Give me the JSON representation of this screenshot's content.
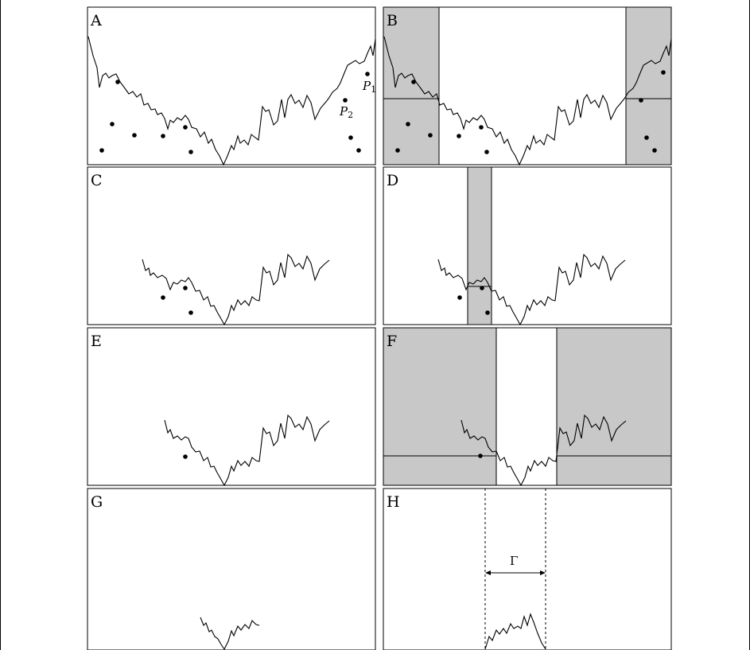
{
  "panels": [
    {
      "id": "A",
      "label": "A"
    },
    {
      "id": "B",
      "label": "B"
    },
    {
      "id": "C",
      "label": "C"
    },
    {
      "id": "D",
      "label": "D"
    },
    {
      "id": "E",
      "label": "E"
    },
    {
      "id": "F",
      "label": "F"
    },
    {
      "id": "G",
      "label": "G"
    },
    {
      "id": "H",
      "label": "H"
    }
  ],
  "annotations": {
    "p1_main": "P",
    "p1_sub": "1",
    "p2_main": "P",
    "p2_sub": "2",
    "gamma": "Γ"
  },
  "colors": {
    "shade": "#c8c8c8",
    "stroke": "#000000",
    "background": "#ffffff"
  }
}
